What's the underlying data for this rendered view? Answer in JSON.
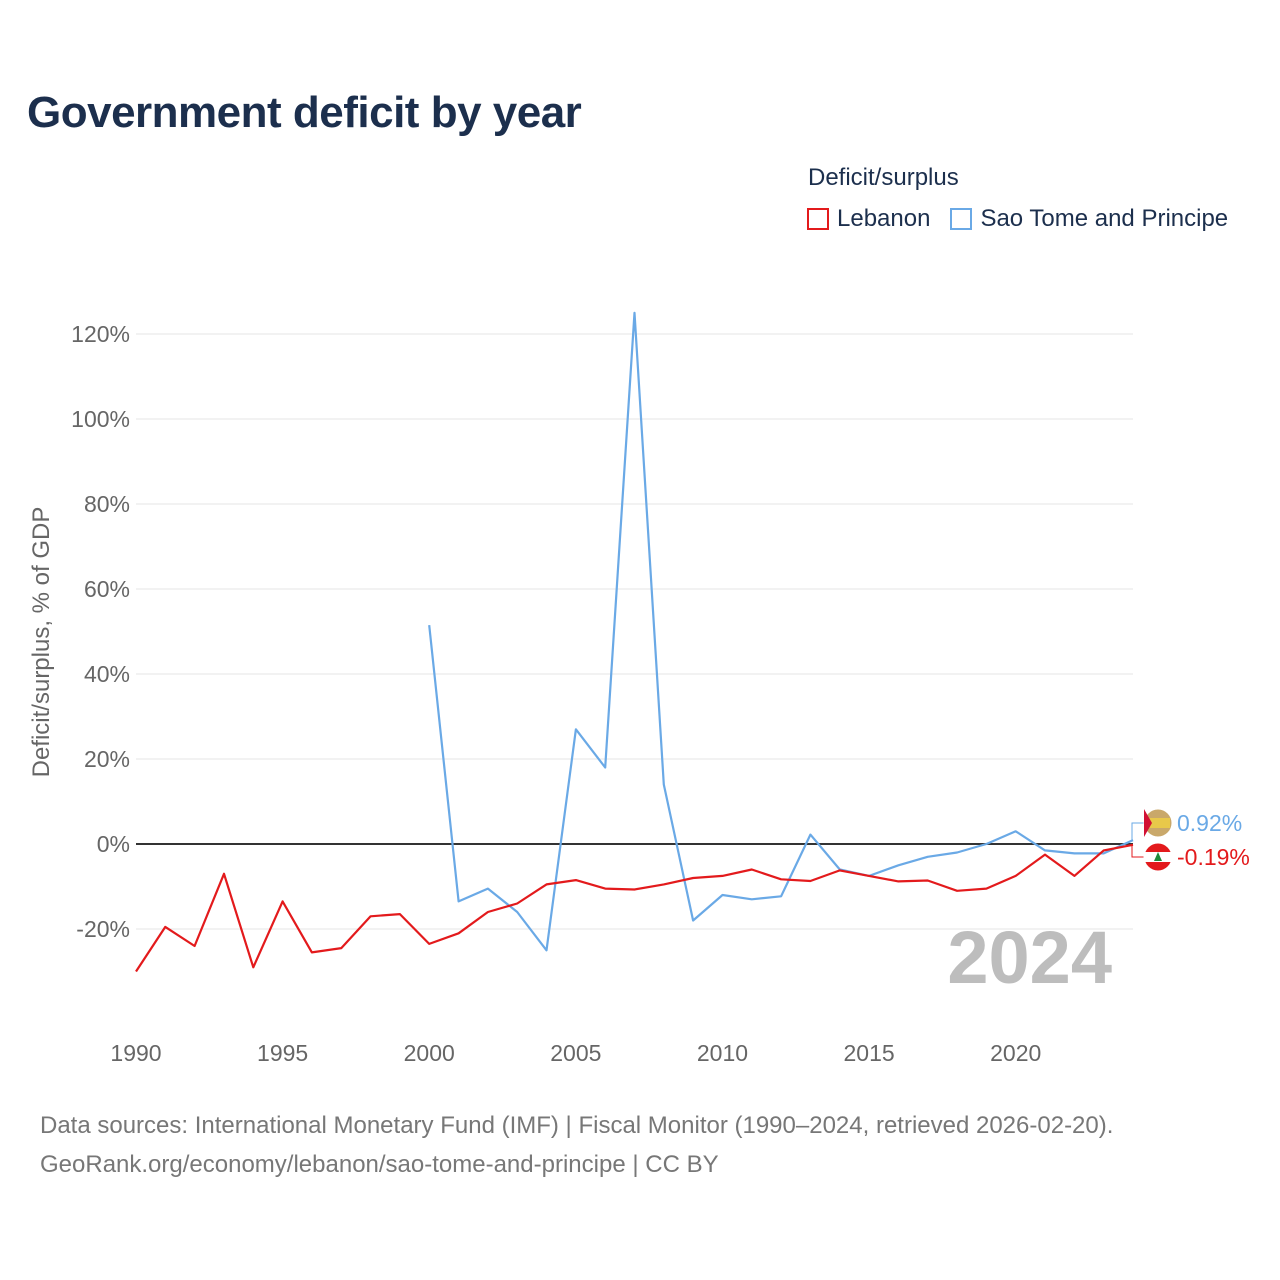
{
  "title": "Government deficit by year",
  "legend": {
    "title": "Deficit/surplus",
    "items": [
      {
        "label": "Lebanon",
        "color": "#e31a1c"
      },
      {
        "label": "Sao Tome and Principe",
        "color": "#6aa9e6"
      }
    ]
  },
  "footer": {
    "line1": "Data sources: International Monetary Fund (IMF) | Fiscal Monitor (1990–2024, retrieved 2026-02-20).",
    "line2": "GeoRank.org/economy/lebanon/sao-tome-and-principe | CC BY"
  },
  "chart_data": {
    "type": "line",
    "title": "Government deficit by year",
    "xlabel": "",
    "ylabel": "Deficit/surplus, % of GDP",
    "xlim": [
      1990,
      2024
    ],
    "ylim": [
      -40,
      125
    ],
    "x_ticks": [
      1990,
      1995,
      2000,
      2005,
      2010,
      2015,
      2020
    ],
    "x_tick_labels": [
      "1990",
      "1995",
      "2000",
      "2005",
      "2010",
      "2015",
      "2020"
    ],
    "y_ticks": [
      -20,
      0,
      20,
      40,
      60,
      80,
      100,
      120
    ],
    "y_tick_labels": [
      "-20%",
      "0%",
      "20%",
      "40%",
      "60%",
      "80%",
      "100%",
      "120%"
    ],
    "grid": true,
    "year_watermark": "2024",
    "series": [
      {
        "name": "Lebanon",
        "color": "#e31a1c",
        "end_label": "-0.19%",
        "x": [
          1990,
          1991,
          1992,
          1993,
          1994,
          1995,
          1996,
          1997,
          1998,
          1999,
          2000,
          2001,
          2002,
          2003,
          2004,
          2005,
          2006,
          2007,
          2008,
          2009,
          2010,
          2011,
          2012,
          2013,
          2014,
          2015,
          2016,
          2017,
          2018,
          2019,
          2020,
          2021,
          2022,
          2023,
          2024
        ],
        "values": [
          -30.0,
          -19.5,
          -24.0,
          -7.0,
          -29.0,
          -13.5,
          -25.5,
          -24.5,
          -17.0,
          -16.5,
          -23.5,
          -21.0,
          -16.0,
          -14.0,
          -9.5,
          -8.5,
          -10.5,
          -10.7,
          -9.5,
          -8.0,
          -7.5,
          -6.0,
          -8.3,
          -8.7,
          -6.2,
          -7.5,
          -8.8,
          -8.6,
          -11.0,
          -10.5,
          -7.5,
          -2.5,
          -7.5,
          -1.5,
          -0.19
        ]
      },
      {
        "name": "Sao Tome and Principe",
        "color": "#6aa9e6",
        "end_label": "0.92%",
        "x": [
          2000,
          2001,
          2002,
          2003,
          2004,
          2005,
          2006,
          2007,
          2008,
          2009,
          2010,
          2011,
          2012,
          2013,
          2014,
          2015,
          2016,
          2017,
          2018,
          2019,
          2020,
          2021,
          2022,
          2023,
          2024
        ],
        "values": [
          51.5,
          -13.5,
          -10.5,
          -16.0,
          -25.0,
          27.0,
          18.0,
          125.0,
          14.0,
          -18.0,
          -12.0,
          -13.0,
          -12.3,
          2.2,
          -6.0,
          -7.5,
          -5.0,
          -3.0,
          -2.0,
          0.0,
          3.0,
          -1.5,
          -2.2,
          -2.2,
          0.92
        ]
      }
    ]
  }
}
